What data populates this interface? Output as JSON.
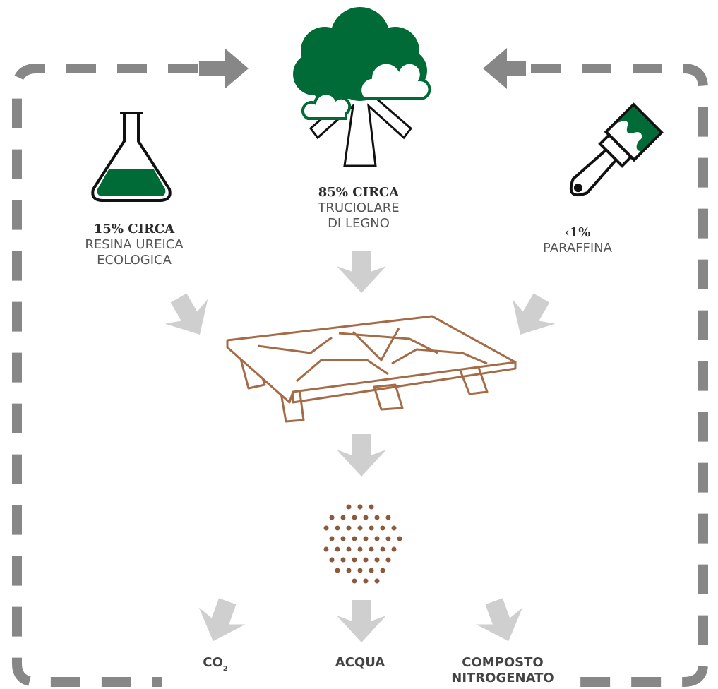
{
  "nodes": [
    {
      "title": "15% CIRCA",
      "lines": [
        "RESINA UREICA",
        "ECOLOGICA"
      ]
    },
    {
      "title": "85% CIRCA",
      "lines": [
        "TRUCIOLARE",
        "DI LEGNO"
      ]
    },
    {
      "title": "‹1%",
      "lines": [
        "PARAFFINA"
      ]
    }
  ],
  "outputs": [
    {
      "label": "CO",
      "subscript": "2"
    },
    {
      "label": "ACQUA"
    },
    {
      "lines": [
        "COMPOSTO",
        "NITROGENATO"
      ]
    }
  ]
}
